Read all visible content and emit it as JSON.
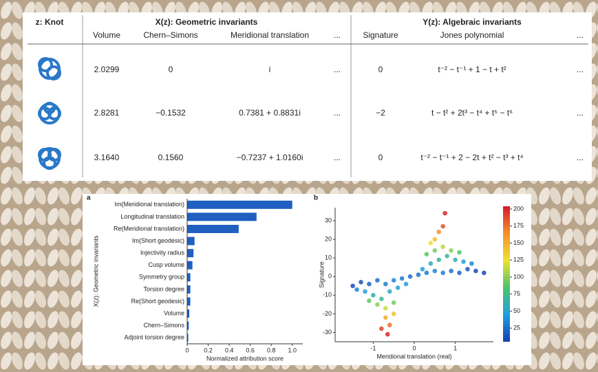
{
  "table": {
    "header": {
      "knot": "z: Knot",
      "geometric": "X(z): Geometric invariants",
      "algebraic": "Y(z): Algebraic invariants",
      "columns": [
        "Volume",
        "Chern–Simons",
        "Meridional translation",
        "...",
        "Signature",
        "Jones polynomial",
        "..."
      ]
    },
    "rows": [
      [
        "2.0299",
        "0",
        "i",
        "...",
        "0",
        "t⁻² − t⁻¹ + 1 − t + t²",
        "..."
      ],
      [
        "2.8281",
        "−0.1532",
        "0.7381 + 0.8831i",
        "...",
        "−2",
        "t − t² + 2t³ − t⁴ + t⁵ − t⁶",
        "..."
      ],
      [
        "3.1640",
        "0.1560",
        "−0.7237 + 1.0160i",
        "...",
        "0",
        "t⁻² − t⁻¹ + 2 − 2t + t² − t³ + t⁴",
        "..."
      ]
    ]
  },
  "chart_data": [
    {
      "type": "bar",
      "panel": "a",
      "orientation": "horizontal",
      "categories": [
        "Im(Meridional translation)",
        "Longitudinal translation",
        "Re(Meridional translation)",
        "Im(Short geodesic)",
        "Injectivity radius",
        "Cusp volume",
        "Symmetry group",
        "Torsion degree",
        "Re(Short geodesic)",
        "Volume",
        "Chern–Simons",
        "Adjoint torsion degree"
      ],
      "values": [
        1.0,
        0.66,
        0.49,
        0.07,
        0.06,
        0.05,
        0.03,
        0.03,
        0.03,
        0.02,
        0.015,
        0.01
      ],
      "color": "#1f5fbf",
      "xlim": [
        0,
        1.1
      ],
      "xticks": [
        0,
        0.2,
        0.4,
        0.6,
        0.8,
        {
          "value": 1,
          "label": "1.0"
        }
      ],
      "xlabel": "Normalized attribution score",
      "ylabel": "X(z): Geometric invariants"
    },
    {
      "type": "scatter",
      "panel": "b",
      "x": [
        -1.5,
        -1.3,
        -1.1,
        -0.9,
        -0.7,
        -0.5,
        -0.3,
        -0.1,
        0.1,
        0.3,
        0.5,
        0.7,
        0.9,
        1.1,
        1.3,
        1.5,
        1.7,
        -1.2,
        -1.0,
        -0.8,
        -0.6,
        -0.4,
        -0.2,
        0.2,
        0.4,
        0.6,
        0.8,
        1.0,
        1.2,
        -1.4,
        1.4,
        -0.9,
        -0.7,
        -0.5,
        -1.1,
        0.5,
        0.7,
        0.9,
        0.3,
        1.1,
        -0.7,
        -0.6,
        -0.5,
        -0.8,
        -0.65,
        0.5,
        0.6,
        0.7,
        0.75,
        0.4
      ],
      "y": [
        -5,
        -3,
        -4,
        -2,
        -4,
        -2,
        -1,
        0,
        1,
        2,
        3,
        2,
        3,
        2,
        4,
        3,
        2,
        -8,
        -10,
        -12,
        -8,
        -6,
        -4,
        4,
        7,
        9,
        11,
        9,
        8,
        -7,
        7,
        -15,
        -17,
        -14,
        -13,
        14,
        16,
        14,
        12,
        13,
        -22,
        -26,
        -20,
        -28,
        -31,
        20,
        24,
        27,
        34,
        18
      ],
      "c": [
        10,
        15,
        20,
        25,
        30,
        35,
        30,
        25,
        25,
        30,
        35,
        30,
        25,
        20,
        15,
        10,
        8,
        45,
        60,
        70,
        55,
        50,
        45,
        45,
        55,
        65,
        70,
        60,
        45,
        35,
        35,
        100,
        115,
        95,
        90,
        95,
        110,
        100,
        90,
        85,
        150,
        175,
        140,
        190,
        200,
        140,
        165,
        185,
        200,
        125
      ],
      "xlim": [
        -1.93,
        1.93
      ],
      "ylim": [
        -35,
        37
      ],
      "xticks": [
        -1,
        0,
        1
      ],
      "yticks": [
        -30,
        -20,
        -10,
        0,
        10,
        20,
        30
      ],
      "xlabel": "Meridional translation (real)",
      "ylabel": "Signature",
      "clim": [
        5,
        204
      ],
      "cticks": [
        25,
        50,
        75,
        100,
        125,
        150,
        175,
        200
      ],
      "colormap": [
        "#1a3fb5",
        "#1fa0e0",
        "#4cc46a",
        "#f0e030",
        "#f5902a",
        "#d7192b"
      ]
    }
  ]
}
